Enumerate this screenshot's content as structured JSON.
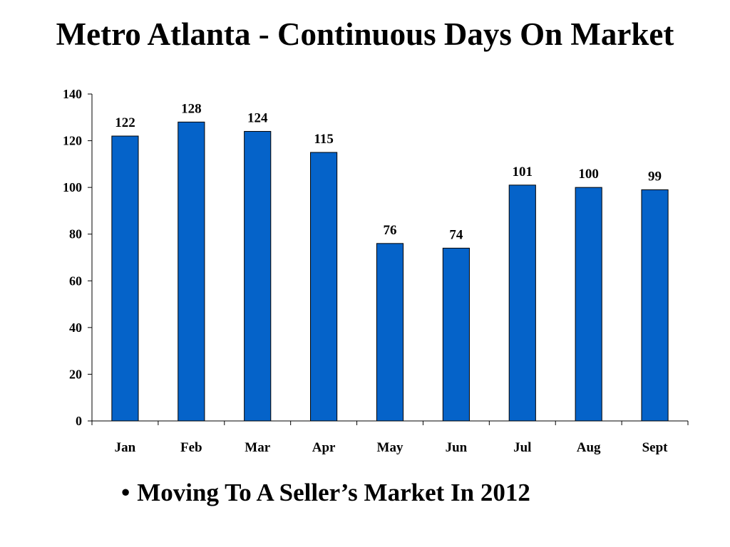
{
  "slide": {
    "title": "Metro Atlanta - Continuous Days On Market",
    "bullet": {
      "symbol": "•",
      "text": "Moving To A Seller’s Market In 2012"
    }
  },
  "chart_data": {
    "type": "bar",
    "title": "",
    "xlabel": "",
    "ylabel": "",
    "categories": [
      "Jan",
      "Feb",
      "Mar",
      "Apr",
      "May",
      "Jun",
      "Jul",
      "Aug",
      "Sept"
    ],
    "series": [
      {
        "values": [
          122,
          128,
          124,
          115,
          76,
          74,
          101,
          100,
          99
        ],
        "color": "#0563C9"
      }
    ],
    "ylim": [
      0,
      140
    ],
    "yticks": [
      0,
      20,
      40,
      60,
      80,
      100,
      120,
      140
    ],
    "data_labels": true,
    "grid": false,
    "legend": "none",
    "bar_color": "#0563C9",
    "bar_outline_color": "#000000"
  }
}
